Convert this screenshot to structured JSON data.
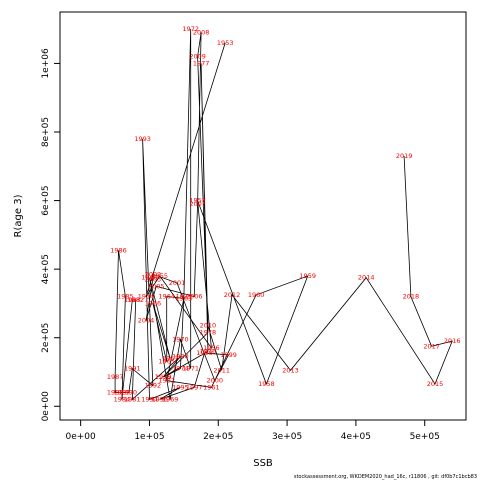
{
  "chart_data": {
    "type": "line",
    "xlabel": "SSB",
    "ylabel": "R(age 3)",
    "xlim": [
      -30000,
      560000
    ],
    "ylim": [
      -40000,
      1150000
    ],
    "x_ticks": [
      0,
      100000,
      200000,
      300000,
      400000,
      500000
    ],
    "x_tick_labels": [
      "0e+00",
      "1e+05",
      "2e+05",
      "3e+05",
      "4e+05",
      "5e+05"
    ],
    "y_ticks": [
      0,
      200000,
      400000,
      600000,
      800000,
      1000000
    ],
    "y_tick_labels": [
      "0e+00",
      "2e+05",
      "4e+05",
      "6e+05",
      "8e+05",
      "1e+06"
    ],
    "line_color": "#000000",
    "label_color": "#ff0000",
    "points": [
      {
        "year": "1953",
        "x": 210000,
        "y": 1060000
      },
      {
        "year": "1954",
        "x": 95000,
        "y": 320000
      },
      {
        "year": "1955",
        "x": 115000,
        "y": 380000
      },
      {
        "year": "1956",
        "x": 190000,
        "y": 170000
      },
      {
        "year": "1957",
        "x": 170000,
        "y": 600000
      },
      {
        "year": "1958",
        "x": 270000,
        "y": 65000
      },
      {
        "year": "1959",
        "x": 330000,
        "y": 380000
      },
      {
        "year": "1960",
        "x": 255000,
        "y": 325000
      },
      {
        "year": "1961",
        "x": 190000,
        "y": 55000
      },
      {
        "year": "1962",
        "x": 125000,
        "y": 75000
      },
      {
        "year": "1963",
        "x": 150000,
        "y": 315000
      },
      {
        "year": "1964",
        "x": 125000,
        "y": 320000
      },
      {
        "year": "1965",
        "x": 125000,
        "y": 130000
      },
      {
        "year": "1966",
        "x": 105000,
        "y": 300000
      },
      {
        "year": "1967",
        "x": 130000,
        "y": 140000
      },
      {
        "year": "1968",
        "x": 100000,
        "y": 375000
      },
      {
        "year": "1969",
        "x": 130000,
        "y": 20000
      },
      {
        "year": "1970",
        "x": 145000,
        "y": 195000
      },
      {
        "year": "1971",
        "x": 160000,
        "y": 110000
      },
      {
        "year": "1972",
        "x": 160000,
        "y": 1100000
      },
      {
        "year": "1973",
        "x": 150000,
        "y": 320000
      },
      {
        "year": "1974",
        "x": 145000,
        "y": 110000
      },
      {
        "year": "1975",
        "x": 120000,
        "y": 85000
      },
      {
        "year": "1976",
        "x": 185000,
        "y": 160000
      },
      {
        "year": "1977",
        "x": 175000,
        "y": 1000000
      },
      {
        "year": "1978",
        "x": 185000,
        "y": 215000
      },
      {
        "year": "1979",
        "x": 120000,
        "y": 85000
      },
      {
        "year": "1980",
        "x": 145000,
        "y": 145000
      },
      {
        "year": "1981",
        "x": 75000,
        "y": 20000
      },
      {
        "year": "1982",
        "x": 80000,
        "y": 310000
      },
      {
        "year": "1983",
        "x": 75000,
        "y": 310000
      },
      {
        "year": "1984",
        "x": 60000,
        "y": 20000
      },
      {
        "year": "1985",
        "x": 65000,
        "y": 320000
      },
      {
        "year": "1986",
        "x": 55000,
        "y": 455000
      },
      {
        "year": "1987",
        "x": 50000,
        "y": 85000
      },
      {
        "year": "1988",
        "x": 50000,
        "y": 40000
      },
      {
        "year": "1989",
        "x": 60000,
        "y": 40000
      },
      {
        "year": "1990",
        "x": 70000,
        "y": 40000
      },
      {
        "year": "1991",
        "x": 75000,
        "y": 110000
      },
      {
        "year": "1992",
        "x": 105000,
        "y": 60000
      },
      {
        "year": "1993",
        "x": 90000,
        "y": 780000
      },
      {
        "year": "1994",
        "x": 100000,
        "y": 20000
      },
      {
        "year": "1995",
        "x": 145000,
        "y": 55000
      },
      {
        "year": "1996",
        "x": 115000,
        "y": 20000
      },
      {
        "year": "1997",
        "x": 165000,
        "y": 55000
      },
      {
        "year": "1998",
        "x": 180000,
        "y": 155000
      },
      {
        "year": "1999",
        "x": 215000,
        "y": 150000
      },
      {
        "year": "2000",
        "x": 195000,
        "y": 75000
      },
      {
        "year": "2001",
        "x": 140000,
        "y": 360000
      },
      {
        "year": "2002",
        "x": 105000,
        "y": 385000
      },
      {
        "year": "2003",
        "x": 105000,
        "y": 370000
      },
      {
        "year": "2004",
        "x": 95000,
        "y": 250000
      },
      {
        "year": "2005",
        "x": 110000,
        "y": 350000
      },
      {
        "year": "2006",
        "x": 165000,
        "y": 320000
      },
      {
        "year": "2007",
        "x": 170000,
        "y": 590000
      },
      {
        "year": "2008",
        "x": 175000,
        "y": 1090000
      },
      {
        "year": "2009",
        "x": 170000,
        "y": 1020000
      },
      {
        "year": "2010",
        "x": 185000,
        "y": 235000
      },
      {
        "year": "2011",
        "x": 205000,
        "y": 105000
      },
      {
        "year": "2012",
        "x": 220000,
        "y": 325000
      },
      {
        "year": "2013",
        "x": 305000,
        "y": 105000
      },
      {
        "year": "2014",
        "x": 415000,
        "y": 375000
      },
      {
        "year": "2015",
        "x": 515000,
        "y": 65000
      },
      {
        "year": "2016",
        "x": 540000,
        "y": 190000
      },
      {
        "year": "2017",
        "x": 510000,
        "y": 175000
      },
      {
        "year": "2018",
        "x": 480000,
        "y": 320000
      },
      {
        "year": "2019",
        "x": 470000,
        "y": 730000
      }
    ]
  },
  "footer": {
    "text": "stockassessment.org,  WKDEM2020_had_16c, r11806 , git: df0b7c1bcb83"
  }
}
